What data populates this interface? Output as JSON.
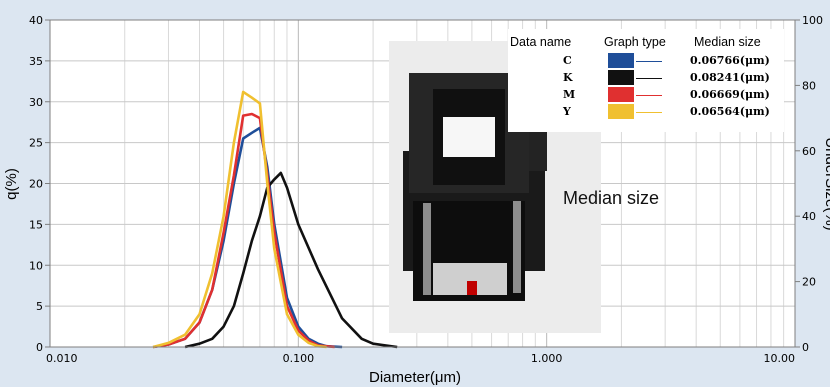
{
  "chart_data": {
    "type": "line",
    "xlabel": "Diameter(μm)",
    "ylabel": "q(%)",
    "y2label": "UnderSize(%)",
    "x_scale": "log",
    "xlim": [
      0.01,
      10
    ],
    "ylim": [
      0,
      40
    ],
    "y2lim": [
      0,
      100
    ],
    "x_ticks": [
      "0.010",
      "0.100",
      "1.000",
      "10.00"
    ],
    "y_ticks": [
      "0",
      "5",
      "10",
      "15",
      "20",
      "25",
      "30",
      "35",
      "40"
    ],
    "y2_ticks": [
      "0",
      "20",
      "40",
      "60",
      "80",
      "100"
    ],
    "grid": true,
    "legend_headers": [
      "Data name",
      "Graph type",
      "Median size"
    ],
    "series": [
      {
        "name": "C",
        "color": "#1f4e99",
        "median": "0.06766(μm)",
        "x": [
          0.026,
          0.03,
          0.035,
          0.04,
          0.045,
          0.05,
          0.055,
          0.06,
          0.065,
          0.07,
          0.075,
          0.08,
          0.09,
          0.1,
          0.11,
          0.12,
          0.13,
          0.15
        ],
        "y": [
          0,
          0.3,
          1,
          3,
          7,
          13,
          20,
          25.5,
          26.2,
          26.8,
          22,
          15,
          6,
          2.5,
          1,
          0.4,
          0.1,
          0
        ]
      },
      {
        "name": "K",
        "color": "#111111",
        "median": "0.08241(μm)",
        "x": [
          0.035,
          0.04,
          0.045,
          0.05,
          0.055,
          0.06,
          0.065,
          0.07,
          0.075,
          0.08,
          0.085,
          0.09,
          0.1,
          0.12,
          0.15,
          0.18,
          0.2,
          0.25
        ],
        "y": [
          0,
          0.4,
          1,
          2.5,
          5,
          9,
          13,
          16,
          19.5,
          20.5,
          21.3,
          19.5,
          15,
          9.5,
          3.5,
          1,
          0.4,
          0
        ]
      },
      {
        "name": "M",
        "color": "#e03030",
        "median": "0.06669(μm)",
        "x": [
          0.026,
          0.03,
          0.035,
          0.04,
          0.045,
          0.05,
          0.055,
          0.06,
          0.065,
          0.07,
          0.075,
          0.08,
          0.09,
          0.1,
          0.11,
          0.12,
          0.14
        ],
        "y": [
          0,
          0.3,
          1,
          3,
          7,
          14,
          21,
          28.3,
          28.5,
          28,
          21,
          14,
          5,
          2,
          0.8,
          0.2,
          0
        ]
      },
      {
        "name": "Y",
        "color": "#f0c030",
        "median": "0.06564(μm)",
        "x": [
          0.026,
          0.03,
          0.035,
          0.04,
          0.045,
          0.05,
          0.055,
          0.06,
          0.065,
          0.07,
          0.075,
          0.08,
          0.09,
          0.1,
          0.11,
          0.12,
          0.13
        ],
        "y": [
          0,
          0.5,
          1.5,
          4,
          9,
          16,
          25,
          31.2,
          30.5,
          29.8,
          20,
          12,
          4,
          1.5,
          0.5,
          0.1,
          0
        ]
      }
    ]
  },
  "photo": {
    "annotation": "Median size"
  }
}
